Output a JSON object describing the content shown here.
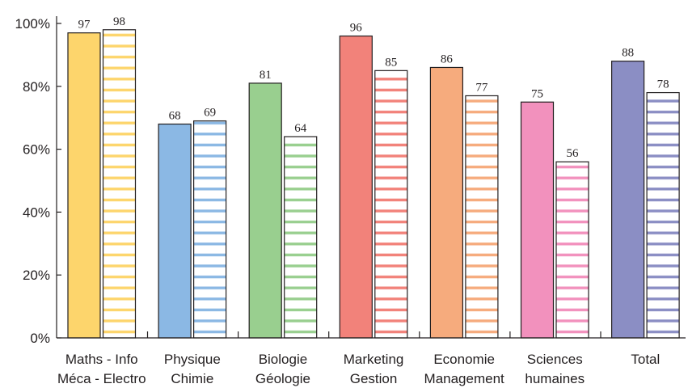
{
  "chart_data": {
    "type": "bar",
    "title": "",
    "xlabel": "",
    "ylabel": "",
    "ylim": [
      0,
      100
    ],
    "y_ticks": [
      {
        "value": 0,
        "label": "0%"
      },
      {
        "value": 20,
        "label": "20%"
      },
      {
        "value": 40,
        "label": "40%"
      },
      {
        "value": 60,
        "label": "60%"
      },
      {
        "value": 80,
        "label": "80%"
      },
      {
        "value": 100,
        "label": "100%"
      }
    ],
    "grid": false,
    "legend": "none",
    "bar_styles": [
      "solid",
      "striped"
    ],
    "categories": [
      {
        "line1": "Maths - Info",
        "line2": "Méca - Electro",
        "color": "#fdd56c",
        "values": [
          97,
          98
        ]
      },
      {
        "line1": "Physique",
        "line2": "Chimie",
        "color": "#8bb8e4",
        "values": [
          68,
          69
        ]
      },
      {
        "line1": "Biologie",
        "line2": "Géologie",
        "color": "#99cf8f",
        "values": [
          81,
          64
        ]
      },
      {
        "line1": "Marketing",
        "line2": "Gestion",
        "color": "#f2827a",
        "values": [
          96,
          85
        ]
      },
      {
        "line1": "Economie",
        "line2": "Management",
        "color": "#f6ab7d",
        "values": [
          86,
          77
        ]
      },
      {
        "line1": "Sciences",
        "line2": "humaines",
        "color": "#f291bd",
        "values": [
          75,
          56
        ]
      },
      {
        "line1": "Total",
        "line2": "",
        "color": "#8b8ec4",
        "values": [
          88,
          78
        ]
      }
    ]
  }
}
